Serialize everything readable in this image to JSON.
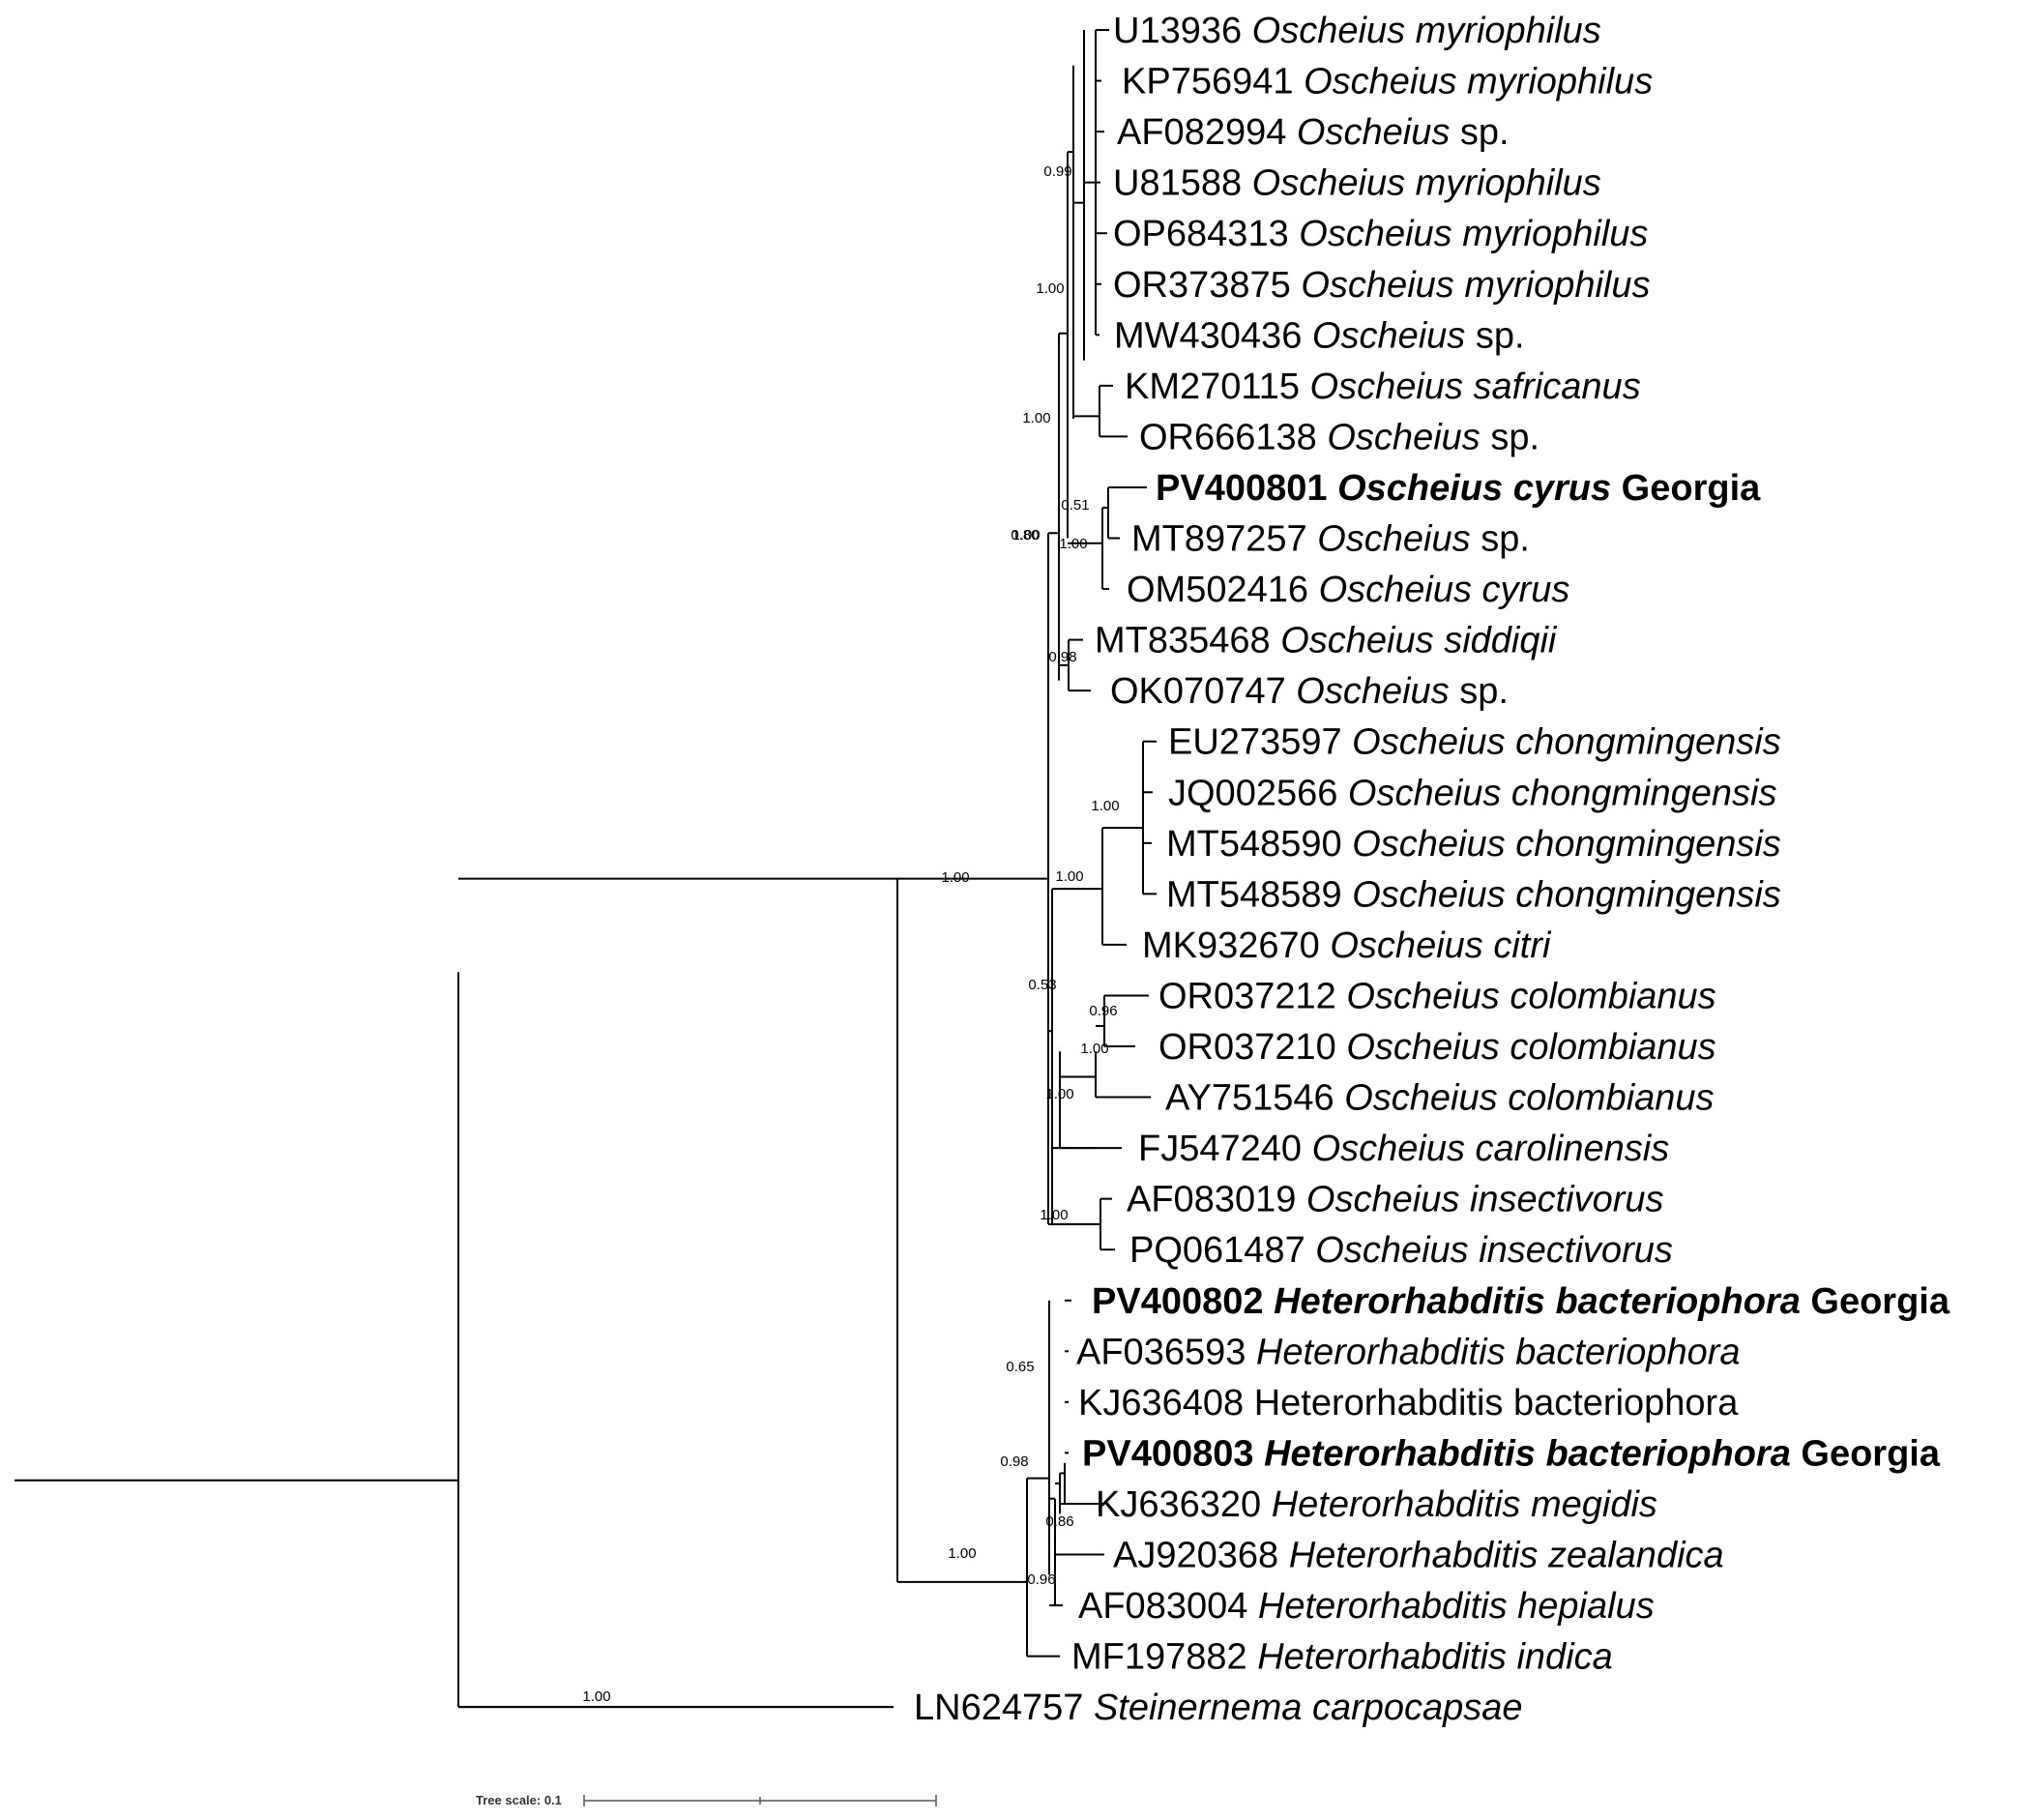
{
  "taxa": [
    {
      "accession": "U13936",
      "species": "Oscheius myriophilus",
      "species_italic": true,
      "suffix": "",
      "bold": false
    },
    {
      "accession": "KP756941",
      "species": "Oscheius myriophilus",
      "species_italic": true,
      "suffix": "",
      "bold": false
    },
    {
      "accession": "AF082994",
      "species": "Oscheius",
      "species_italic": true,
      "suffix": "sp.",
      "bold": false
    },
    {
      "accession": "U81588",
      "species": "Oscheius myriophilus",
      "species_italic": true,
      "suffix": "",
      "bold": false
    },
    {
      "accession": "OP684313",
      "species": "Oscheius myriophilus",
      "species_italic": true,
      "suffix": "",
      "bold": false
    },
    {
      "accession": "OR373875",
      "species": "Oscheius myriophilus",
      "species_italic": true,
      "suffix": "",
      "bold": false
    },
    {
      "accession": "MW430436",
      "species": "Oscheius",
      "species_italic": true,
      "suffix": "sp.",
      "bold": false
    },
    {
      "accession": "KM270115",
      "species": "Oscheius safricanus",
      "species_italic": true,
      "suffix": "",
      "bold": false
    },
    {
      "accession": "OR666138",
      "species": "Oscheius",
      "species_italic": true,
      "suffix": "sp.",
      "bold": false
    },
    {
      "accession": "PV400801",
      "species": "Oscheius cyrus",
      "species_italic": true,
      "suffix": "Georgia",
      "bold": true
    },
    {
      "accession": "MT897257",
      "species": "Oscheius",
      "species_italic": true,
      "suffix": "sp.",
      "bold": false
    },
    {
      "accession": "OM502416",
      "species": "Oscheius cyrus",
      "species_italic": true,
      "suffix": "",
      "bold": false
    },
    {
      "accession": "MT835468",
      "species": "Oscheius siddiqii",
      "species_italic": true,
      "suffix": "",
      "bold": false
    },
    {
      "accession": "OK070747",
      "species": "Oscheius",
      "species_italic": true,
      "suffix": "sp.",
      "bold": false
    },
    {
      "accession": "EU273597",
      "species": "Oscheius chongmingensis",
      "species_italic": true,
      "suffix": "",
      "bold": false
    },
    {
      "accession": "JQ002566",
      "species": "Oscheius chongmingensis",
      "species_italic": true,
      "suffix": "",
      "bold": false
    },
    {
      "accession": "MT548590",
      "species": "Oscheius chongmingensis",
      "species_italic": true,
      "suffix": "",
      "bold": false
    },
    {
      "accession": "MT548589",
      "species": "Oscheius chongmingensis",
      "species_italic": true,
      "suffix": "",
      "bold": false
    },
    {
      "accession": "MK932670",
      "species": "Oscheius citri",
      "species_italic": true,
      "suffix": "",
      "bold": false
    },
    {
      "accession": "OR037212",
      "species": "Oscheius colombianus",
      "species_italic": true,
      "suffix": "",
      "bold": false
    },
    {
      "accession": "OR037210",
      "species": "Oscheius colombianus",
      "species_italic": true,
      "suffix": "",
      "bold": false
    },
    {
      "accession": "AY751546",
      "species": "Oscheius colombianus",
      "species_italic": true,
      "suffix": "",
      "bold": false
    },
    {
      "accession": "FJ547240",
      "species": "Oscheius carolinensis",
      "species_italic": true,
      "suffix": "",
      "bold": false
    },
    {
      "accession": "AF083019",
      "species": "Oscheius insectivorus",
      "species_italic": true,
      "suffix": "",
      "bold": false
    },
    {
      "accession": "PQ061487",
      "species": "Oscheius insectivorus",
      "species_italic": true,
      "suffix": "",
      "bold": false
    },
    {
      "accession": "PV400802",
      "species": "Heterorhabditis bacteriophora",
      "species_italic": true,
      "suffix": "Georgia",
      "bold": true
    },
    {
      "accession": "AF036593",
      "species": "Heterorhabditis bacteriophora",
      "species_italic": true,
      "suffix": "",
      "bold": false
    },
    {
      "accession": "KJ636408",
      "species": "Heterorhabditis bacteriophora",
      "species_italic": false,
      "suffix": "",
      "bold": false
    },
    {
      "accession": "PV400803",
      "species": "Heterorhabditis bacteriophora",
      "species_italic": true,
      "suffix": "Georgia",
      "bold": true
    },
    {
      "accession": "KJ636320",
      "species": "Heterorhabditis megidis",
      "species_italic": true,
      "suffix": "",
      "bold": false
    },
    {
      "accession": "AJ920368",
      "species": "Heterorhabditis zealandica",
      "species_italic": true,
      "suffix": "",
      "bold": false
    },
    {
      "accession": "AF083004",
      "species": "Heterorhabditis hepialus",
      "species_italic": true,
      "suffix": "",
      "bold": false
    },
    {
      "accession": "MF197882",
      "species": "Heterorhabditis indica",
      "species_italic": true,
      "suffix": "",
      "bold": false
    },
    {
      "accession": "LN624757",
      "species": "Steinernema carpocapsae",
      "species_italic": true,
      "suffix": "",
      "bold": false
    }
  ],
  "support_values": [
    "0.99",
    "1.00",
    "1.00",
    "1.00",
    "0.80",
    "0.51",
    "1.00",
    "0.98",
    "1.00",
    "1.00",
    "1.00",
    "0.53",
    "0.96",
    "1.00",
    "1.00",
    "1.00",
    "0.65",
    "0.98",
    "0.86",
    "0.96",
    "1.00",
    "1.00"
  ],
  "tree_scale": {
    "label": "Tree scale: 0.1"
  }
}
